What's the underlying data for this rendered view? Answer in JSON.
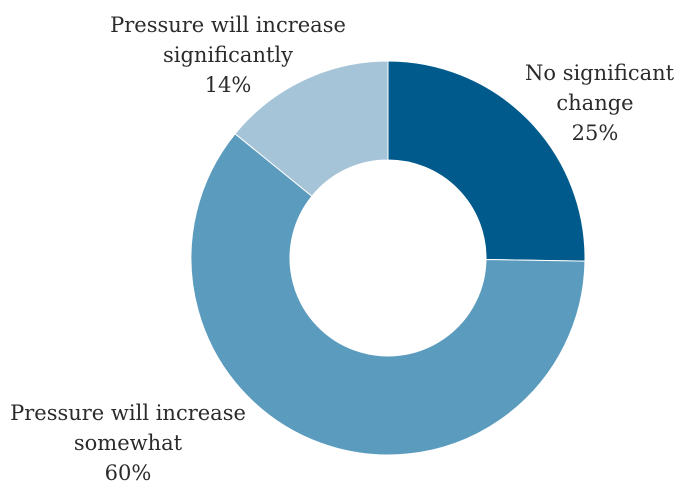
{
  "chart_data": {
    "type": "pie",
    "variant": "donut",
    "start_angle_deg": 0,
    "direction": "clockwise",
    "slices": [
      {
        "label_lines": [
          "No significant",
          "change"
        ],
        "value_label": "25%",
        "value": 25,
        "color": "#005A8C"
      },
      {
        "label_lines": [
          "Pressure will increase",
          "somewhat"
        ],
        "value_label": "60%",
        "value": 60,
        "color": "#5B9BBD"
      },
      {
        "label_lines": [
          "Pressure will increase",
          "significantly"
        ],
        "value_label": "14%",
        "value": 14,
        "color": "#A6C4D8"
      }
    ]
  }
}
